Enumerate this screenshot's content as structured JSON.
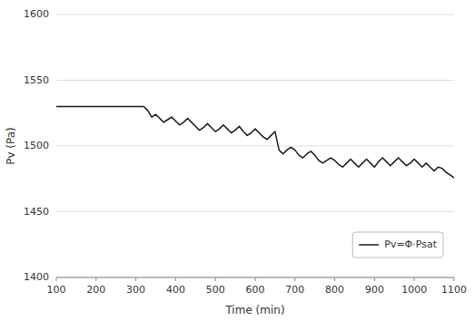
{
  "chart_data": {
    "type": "line",
    "xlabel": "Time (min)",
    "ylabel": "Pv (Pa)",
    "x": [
      100,
      120,
      140,
      160,
      180,
      200,
      220,
      240,
      260,
      280,
      300,
      320,
      330,
      340,
      350,
      360,
      370,
      380,
      390,
      400,
      410,
      420,
      430,
      440,
      450,
      460,
      470,
      480,
      490,
      500,
      510,
      520,
      530,
      540,
      550,
      560,
      570,
      580,
      590,
      600,
      610,
      620,
      630,
      640,
      650,
      660,
      670,
      680,
      690,
      700,
      710,
      720,
      730,
      740,
      750,
      760,
      770,
      780,
      790,
      800,
      810,
      820,
      830,
      840,
      850,
      860,
      870,
      880,
      890,
      900,
      910,
      920,
      930,
      940,
      950,
      960,
      970,
      980,
      990,
      1000,
      1010,
      1020,
      1030,
      1040,
      1050,
      1060,
      1070,
      1080,
      1090,
      1100
    ],
    "series": [
      {
        "name": "Pv=Φ·Psat",
        "color": "#1a1a1a",
        "values": [
          1530,
          1530,
          1530,
          1530,
          1530,
          1530,
          1530,
          1530,
          1530,
          1530,
          1530,
          1530,
          1527,
          1522,
          1524,
          1521,
          1518,
          1520,
          1522,
          1519,
          1516,
          1518,
          1521,
          1518,
          1515,
          1512,
          1514,
          1517,
          1514,
          1511,
          1513,
          1516,
          1513,
          1510,
          1512,
          1515,
          1511,
          1508,
          1510,
          1513,
          1510,
          1507,
          1505,
          1508,
          1511,
          1497,
          1494,
          1497,
          1499,
          1497,
          1493,
          1491,
          1494,
          1496,
          1493,
          1489,
          1487,
          1489,
          1491,
          1489,
          1486,
          1484,
          1487,
          1490,
          1487,
          1484,
          1487,
          1490,
          1487,
          1484,
          1488,
          1491,
          1488,
          1485,
          1488,
          1491,
          1488,
          1485,
          1487,
          1490,
          1487,
          1484,
          1487,
          1484,
          1481,
          1484,
          1483,
          1480,
          1478,
          1476
        ]
      }
    ],
    "xlim": [
      100,
      1100
    ],
    "ylim": [
      1400,
      1600
    ],
    "xticks": [
      100,
      200,
      300,
      400,
      500,
      600,
      700,
      800,
      900,
      1000,
      1100
    ],
    "yticks": [
      1400,
      1450,
      1500,
      1550,
      1600
    ],
    "grid": true,
    "legend": "lower right"
  }
}
